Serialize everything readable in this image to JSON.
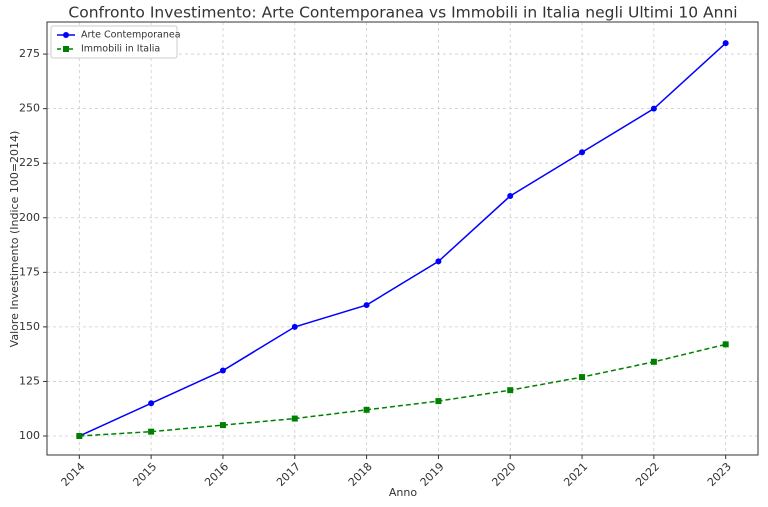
{
  "chart_data": {
    "type": "line",
    "title": "Confronto Investimento: Arte Contemporanea vs Immobili in Italia negli Ultimi 10 Anni",
    "xlabel": "Anno",
    "ylabel": "Valore Investimento (Indice 100=2014)",
    "x": [
      2014,
      2015,
      2016,
      2017,
      2018,
      2019,
      2020,
      2021,
      2022,
      2023
    ],
    "series": [
      {
        "name": "Arte Contemporanea",
        "color": "#0000ff",
        "marker": "circle",
        "linestyle": "solid",
        "values": [
          100,
          115,
          130,
          150,
          160,
          180,
          210,
          230,
          250,
          280
        ]
      },
      {
        "name": "Immobili in Italia",
        "color": "#008000",
        "marker": "square",
        "linestyle": "dashed",
        "values": [
          100,
          102,
          105,
          108,
          112,
          116,
          121,
          127,
          134,
          142
        ]
      }
    ],
    "xlim": [
      2013.55,
      2023.45
    ],
    "xticks": [
      2014,
      2015,
      2016,
      2017,
      2018,
      2019,
      2020,
      2021,
      2022,
      2023
    ],
    "ylim": [
      91.3,
      289.7
    ],
    "yticks": [
      100,
      125,
      150,
      175,
      200,
      225,
      250,
      275
    ],
    "grid": true,
    "legend": "upper left"
  }
}
